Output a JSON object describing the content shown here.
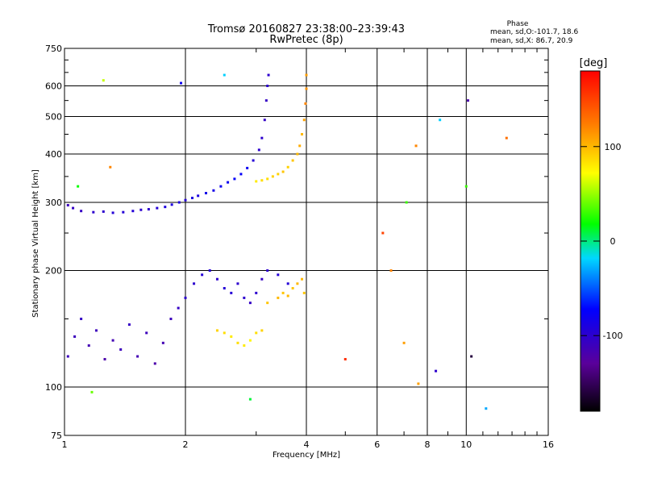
{
  "chart_data": {
    "type": "scatter",
    "title": "Tromsø 20160827 23:38:00–23:39:43",
    "subtitle": "RwPretec (8p)",
    "xlabel": "Frequency [MHz]",
    "ylabel": "Stationary phase Virtual Height [km]",
    "x_scale": "log2",
    "y_scale": "log",
    "xlim": [
      1,
      16
    ],
    "ylim": [
      75,
      750
    ],
    "x_ticks": [
      1,
      2,
      4,
      6,
      8,
      10,
      16
    ],
    "x_tick_labels": [
      "1",
      "2",
      "4",
      "6",
      "8",
      "10",
      "16"
    ],
    "y_ticks": [
      75,
      100,
      200,
      300,
      400,
      500,
      600,
      750
    ],
    "y_tick_labels": [
      "75",
      "100",
      "200",
      "300",
      "400",
      "500",
      "600",
      "750"
    ],
    "grid": true,
    "stats": {
      "heading": "Phase",
      "o_line": "mean, sd,O:-101.7, 18.6",
      "x_line": "mean, sd,X:  86.7, 20.9"
    },
    "colorbar": {
      "label": "[deg]",
      "range": [
        -180,
        180
      ],
      "ticks": [
        100,
        0,
        -100
      ],
      "tick_labels": [
        "100",
        "0",
        "-100"
      ],
      "colormap": "rainbow"
    },
    "series": [
      {
        "trace": "F-layer (blue, O-mode)",
        "x": [
          1.02,
          1.05,
          1.1,
          1.18,
          1.25,
          1.32,
          1.4,
          1.48,
          1.55,
          1.62,
          1.7,
          1.78,
          1.85,
          1.93,
          2.0,
          2.08,
          2.15,
          2.25,
          2.35,
          2.45,
          2.55,
          2.65,
          2.75,
          2.85,
          2.95,
          3.05,
          3.1,
          3.15,
          3.18,
          3.2,
          3.22
        ],
        "y": [
          295,
          290,
          285,
          283,
          284,
          282,
          283,
          285,
          287,
          288,
          290,
          292,
          296,
          300,
          304,
          308,
          312,
          317,
          322,
          330,
          338,
          345,
          355,
          368,
          385,
          410,
          440,
          490,
          550,
          600,
          640
        ],
        "phase_deg": [
          -110,
          -105,
          -105,
          -100,
          -100,
          -95,
          -95,
          -95,
          -100,
          -100,
          -95,
          -90,
          -90,
          -90,
          -95,
          -90,
          -90,
          -85,
          -85,
          -80,
          -80,
          -75,
          -75,
          -80,
          -95,
          -100,
          -100,
          -105,
          -105,
          -100,
          -100
        ]
      },
      {
        "trace": "F-layer (yellow/orange, X-mode)",
        "x": [
          3.0,
          3.1,
          3.2,
          3.3,
          3.4,
          3.5,
          3.6,
          3.7,
          3.8,
          3.85,
          3.9,
          3.95,
          3.98,
          4.0,
          4.0
        ],
        "y": [
          340,
          342,
          345,
          350,
          355,
          360,
          370,
          385,
          400,
          420,
          450,
          490,
          540,
          590,
          640
        ],
        "phase_deg": [
          80,
          85,
          85,
          90,
          90,
          95,
          90,
          95,
          100,
          105,
          100,
          110,
          120,
          115,
          110
        ]
      },
      {
        "trace": "E/low echoes (blue)",
        "x": [
          1.02,
          1.06,
          1.1,
          1.15,
          1.2,
          1.26,
          1.32,
          1.38,
          1.45,
          1.52,
          1.6,
          1.68,
          1.76,
          1.84,
          1.92,
          2.0,
          2.1,
          2.2,
          2.3,
          2.4,
          2.5,
          2.6,
          2.7,
          2.8,
          2.9,
          3.0,
          3.1,
          3.2,
          3.4,
          3.6
        ],
        "y": [
          120,
          135,
          150,
          128,
          140,
          118,
          132,
          125,
          145,
          120,
          138,
          115,
          130,
          150,
          160,
          170,
          185,
          195,
          200,
          190,
          180,
          175,
          185,
          170,
          165,
          175,
          190,
          200,
          195,
          185
        ],
        "phase_deg": [
          -110,
          -110,
          -105,
          -115,
          -110,
          -120,
          -115,
          -110,
          -105,
          -115,
          -110,
          -120,
          -115,
          -110,
          -105,
          -100,
          -100,
          -95,
          -95,
          -100,
          -95,
          -95,
          -100,
          -100,
          -105,
          -100,
          -105,
          -100,
          -95,
          -95
        ]
      },
      {
        "trace": "E/low echoes (yellow, X-mode)",
        "x": [
          2.4,
          2.5,
          2.6,
          2.7,
          2.8,
          2.9,
          3.0,
          3.1,
          3.2,
          3.4,
          3.5,
          3.6,
          3.7,
          3.8,
          3.9,
          3.95
        ],
        "y": [
          140,
          138,
          135,
          130,
          128,
          132,
          138,
          140,
          165,
          170,
          175,
          172,
          180,
          185,
          190,
          175
        ],
        "phase_deg": [
          90,
          85,
          80,
          85,
          80,
          75,
          85,
          90,
          95,
          100,
          95,
          100,
          95,
          100,
          100,
          95
        ]
      },
      {
        "trace": "Sparse points",
        "x": [
          1.25,
          1.08,
          1.95,
          1.3,
          2.5,
          1.17,
          2.9,
          5.0,
          6.2,
          7.1,
          7.5,
          8.4,
          8.6,
          10.1,
          10.3,
          11.2,
          12.6,
          7.0,
          10.0,
          6.5,
          7.6
        ],
        "y": [
          620,
          330,
          610,
          370,
          640,
          97,
          93,
          118,
          250,
          300,
          420,
          110,
          490,
          550,
          120,
          88,
          440,
          130,
          330,
          200,
          102
        ],
        "phase_deg": [
          60,
          20,
          -80,
          120,
          -20,
          40,
          10,
          160,
          150,
          30,
          120,
          -100,
          -20,
          -120,
          -160,
          -30,
          130,
          110,
          30,
          120,
          110
        ]
      }
    ]
  }
}
